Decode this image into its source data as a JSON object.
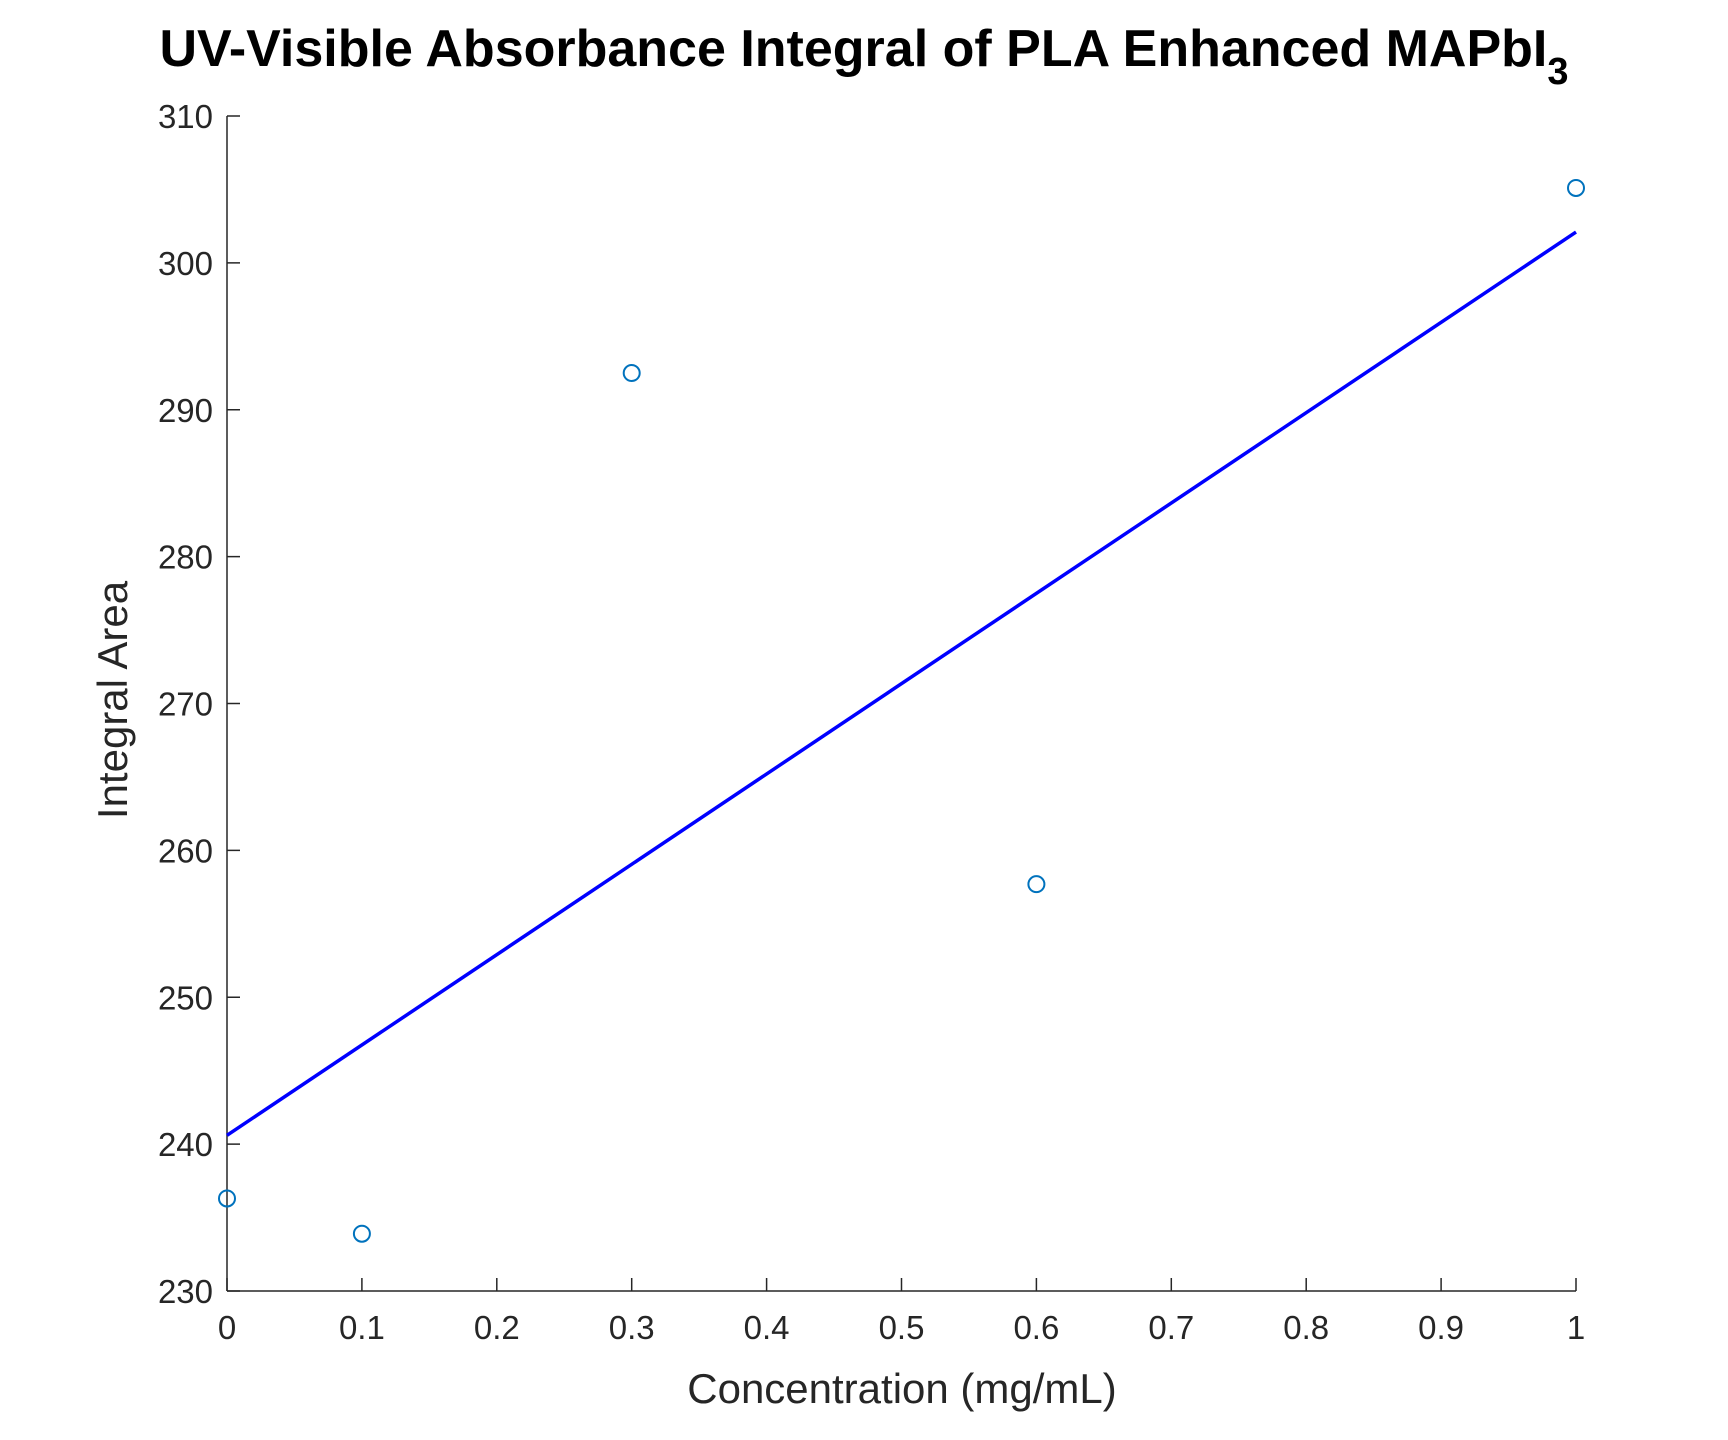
{
  "chart_data": {
    "type": "scatter",
    "title": "UV-Visible Absorbance Integral of PLA Enhanced MAPbI",
    "title_subscript": "3",
    "xlabel": "Concentration (mg/mL)",
    "ylabel": "Integral Area",
    "xlim": [
      0,
      1
    ],
    "ylim": [
      230,
      310
    ],
    "x_ticks": [
      "0",
      "0.1",
      "0.2",
      "0.3",
      "0.4",
      "0.5",
      "0.6",
      "0.7",
      "0.8",
      "0.9",
      "1"
    ],
    "y_ticks": [
      "230",
      "240",
      "250",
      "260",
      "270",
      "280",
      "290",
      "300",
      "310"
    ],
    "grid": false,
    "points": [
      {
        "x": 0,
        "y": 236.3
      },
      {
        "x": 0.1,
        "y": 233.9
      },
      {
        "x": 0.3,
        "y": 292.5
      },
      {
        "x": 0.6,
        "y": 257.7
      },
      {
        "x": 1,
        "y": 305.1
      }
    ],
    "fit_line": {
      "x": [
        0,
        1
      ],
      "y": [
        240.6,
        302.1
      ]
    },
    "marker_color": "#0072BD",
    "line_color": "#0000FF",
    "axis_color": "#262626"
  }
}
